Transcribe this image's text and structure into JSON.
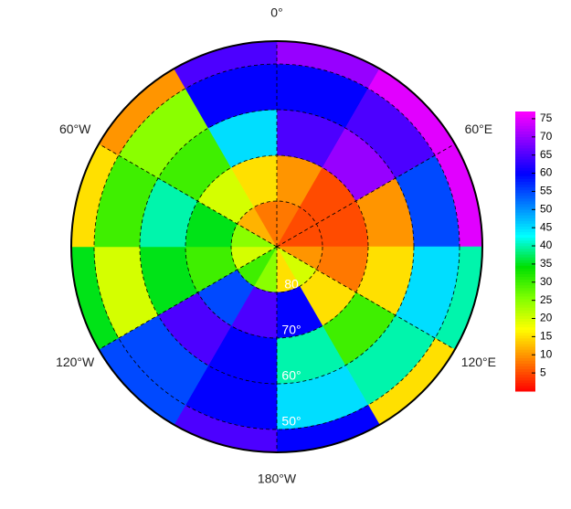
{
  "chart_data": {
    "type": "polar-heatmap",
    "lat_edges": [
      -90,
      -80,
      -70,
      -60,
      -50,
      -45
    ],
    "lon_edges": [
      0,
      30,
      60,
      90,
      120,
      150,
      180,
      210,
      240,
      270,
      300,
      330,
      360
    ],
    "values": [
      [
        8,
        5,
        5,
        10,
        20,
        15,
        25,
        30,
        20,
        25,
        12,
        8
      ],
      [
        10,
        5,
        5,
        8,
        15,
        60,
        65,
        55,
        30,
        35,
        20,
        15
      ],
      [
        65,
        70,
        10,
        15,
        30,
        40,
        60,
        65,
        35,
        40,
        30,
        45
      ],
      [
        60,
        65,
        55,
        45,
        40,
        45,
        60,
        55,
        20,
        30,
        25,
        60
      ],
      [
        70,
        75,
        75,
        40,
        15,
        60,
        65,
        55,
        35,
        15,
        10,
        65
      ]
    ],
    "lonticks": [
      {
        "value": 0,
        "label": "0°"
      },
      {
        "value": 60,
        "label": "60°E"
      },
      {
        "value": 120,
        "label": "120°E"
      },
      {
        "value": 180,
        "label": "180°W"
      },
      {
        "value": -120,
        "label": "120°W"
      },
      {
        "value": -60,
        "label": "60°W"
      }
    ],
    "latticks": [
      {
        "value": -80,
        "label": "80"
      },
      {
        "value": -70,
        "label": "70°"
      },
      {
        "value": -60,
        "label": "60°"
      },
      {
        "value": -50,
        "label": "50°"
      }
    ],
    "clim": [
      0,
      77
    ],
    "cticks": [
      5,
      10,
      15,
      20,
      25,
      30,
      35,
      40,
      45,
      50,
      55,
      60,
      65,
      70,
      75
    ],
    "colormap": [
      "#ff0000",
      "#ff8000",
      "#ffff00",
      "#80ff00",
      "#00e000",
      "#00ffff",
      "#0080ff",
      "#0000ff",
      "#8000ff",
      "#ff00ff"
    ],
    "grid": true
  }
}
